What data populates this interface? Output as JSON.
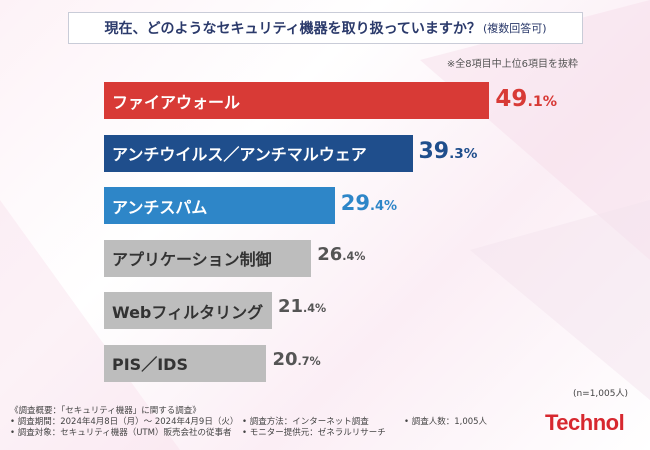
{
  "title": {
    "main": "現在、どのようなセキュリティ機器を取り扱っていますか？",
    "suffix": "(複数回答可)"
  },
  "note": "※全8項目中上位6項目を抜粋",
  "chart_data": {
    "type": "bar",
    "orientation": "horizontal",
    "unit": "%",
    "categories": [
      "ファイアウォール",
      "アンチウイルス／アンチマルウェア",
      "アンチスパム",
      "アプリケーション制御",
      "Webフィルタリング",
      "PIS／IDS"
    ],
    "values": [
      49.1,
      39.3,
      29.4,
      26.4,
      21.4,
      20.7
    ],
    "colors": [
      "#d83a36",
      "#1f4e8c",
      "#2e86c8",
      "#bdbdbd",
      "#bdbdbd",
      "#bdbdbd"
    ],
    "label_colors": [
      "#ffffff",
      "#ffffff",
      "#ffffff",
      "#333333",
      "#333333",
      "#333333"
    ],
    "value_colors": [
      "#d83a36",
      "#1f4e8c",
      "#2e86c8",
      "#555555",
      "#555555",
      "#555555"
    ],
    "xlim": [
      0,
      55
    ]
  },
  "sample_note": "(n=1,005人)",
  "footer": {
    "line1": "《調査概要：「セキュリティ機器」に関する調査》",
    "period": "• 調査期間：2024年4月8日（月）～ 2024年4月9日（火）",
    "target": "• 調査対象：セキュリティ機器（UTM）販売会社の従事者",
    "method": "• 調査方法：インターネット調査",
    "provider": "• モニター提供元：ゼネラルリサーチ",
    "count": "• 調査人数：1,005人"
  },
  "logo": "Technol"
}
